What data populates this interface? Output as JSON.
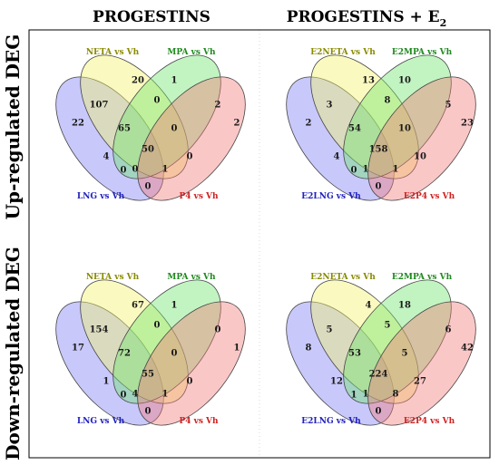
{
  "column_headers": [
    "PROGESTINS",
    "PROGESTINS + E"
  ],
  "column_header_subscript": "2",
  "row_headers": [
    "Up-regulated DEG",
    "Down-regulated DEG"
  ],
  "colors": {
    "yellow": "#f3f36a",
    "green": "#6ee46e",
    "blue": "#7b7bf6",
    "red": "#f27a7a",
    "label_yellow": "#8a8a00",
    "label_green": "#1e8a1e",
    "label_blue": "#2020c0",
    "label_red": "#d02020",
    "border": "#000000"
  },
  "diagrams": [
    {
      "sets": {
        "yellow": "NETA vs Vh",
        "green": "MPA vs Vh",
        "blue": "LNG vs Vh",
        "red": "P4 vs Vh"
      },
      "regions": {
        "Y": "20",
        "G": "1",
        "B": "22",
        "R": "2",
        "YG": "0",
        "BY": "107",
        "GR": "2",
        "BR": "0",
        "BYG": "65",
        "YGR": "0",
        "BYR": "4",
        "BGR": "0",
        "BYG R": "50",
        "BG": "0",
        "YR": "1",
        "BYGR": "0"
      }
    },
    {
      "sets": {
        "yellow": "E2NETA vs Vh",
        "green": "E2MPA vs Vh",
        "blue": "E2LNG vs Vh",
        "red": "E2P4 vs Vh"
      },
      "regions": {
        "Y": "13",
        "G": "10",
        "B": "2",
        "R": "23",
        "YG": "8",
        "BY": "3",
        "GR": "5",
        "BR": "0",
        "BYG": "54",
        "YGR": "10",
        "BYR": "4",
        "BGR": "10",
        "BYG R": "158",
        "BG": "1",
        "YR": "1",
        "BYGR": "0"
      }
    },
    {
      "sets": {
        "yellow": "NETA vs Vh",
        "green": "MPA vs Vh",
        "blue": "LNG vs Vh",
        "red": "P4 vs Vh"
      },
      "regions": {
        "Y": "67",
        "G": "1",
        "B": "17",
        "R": "1",
        "YG": "0",
        "BY": "154",
        "GR": "0",
        "BR": "0",
        "BYG": "72",
        "YGR": "0",
        "BYR": "1",
        "BGR": "0",
        "BYG R": "55",
        "BG": "4",
        "YR": "1",
        "BYGR": "0"
      }
    },
    {
      "sets": {
        "yellow": "E2NETA vs Vh",
        "green": "E2MPA vs Vh",
        "blue": "E2LNG vs Vh",
        "red": "E2P4 vs Vh"
      },
      "regions": {
        "Y": "4",
        "G": "18",
        "B": "8",
        "R": "42",
        "YG": "5",
        "BY": "5",
        "GR": "6",
        "BR": "1",
        "BYG": "53",
        "YGR": "5",
        "BYR": "12",
        "BGR": "27",
        "BYG R": "224",
        "BG": "1",
        "YR": "8",
        "BYGR": "0"
      }
    }
  ]
}
